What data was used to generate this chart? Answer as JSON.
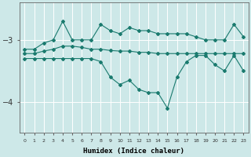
{
  "xlabel": "Humidex (Indice chaleur)",
  "background_color": "#cde8e8",
  "grid_color": "#ffffff",
  "line_color": "#1a7a6e",
  "x_values": [
    0,
    1,
    2,
    3,
    4,
    5,
    6,
    7,
    8,
    9,
    10,
    11,
    12,
    13,
    14,
    15,
    16,
    17,
    18,
    19,
    20,
    21,
    22,
    23
  ],
  "series": [
    [
      -3.15,
      -3.15,
      -3.05,
      -3.0,
      -2.7,
      -3.0,
      -3.0,
      -3.0,
      -2.75,
      -2.85,
      -2.9,
      -2.8,
      -2.85,
      -2.85,
      -2.9,
      -2.9,
      -2.9,
      -2.9,
      -2.95,
      -3.0,
      -3.0,
      -3.0,
      -2.75,
      -2.95
    ],
    [
      -3.22,
      -3.22,
      -3.18,
      -3.15,
      -3.1,
      -3.1,
      -3.12,
      -3.15,
      -3.15,
      -3.17,
      -3.18,
      -3.18,
      -3.2,
      -3.2,
      -3.22,
      -3.22,
      -3.22,
      -3.22,
      -3.22,
      -3.22,
      -3.22,
      -3.22,
      -3.22,
      -3.22
    ],
    [
      -3.3,
      -3.3,
      -3.3,
      -3.3,
      -3.3,
      -3.3,
      -3.3,
      -3.3,
      -3.35,
      -3.6,
      -3.72,
      -3.65,
      -3.8,
      -3.85,
      -3.85,
      -4.1,
      -3.6,
      -3.35,
      -3.25,
      -3.25,
      -3.4,
      -3.5,
      -3.25,
      -3.5
    ]
  ],
  "ylim": [
    -4.5,
    -2.4
  ],
  "yticks": [
    -4.0,
    -3.0
  ],
  "xlim": [
    -0.5,
    23.5
  ],
  "figwidth": 3.2,
  "figheight": 2.0,
  "dpi": 100
}
